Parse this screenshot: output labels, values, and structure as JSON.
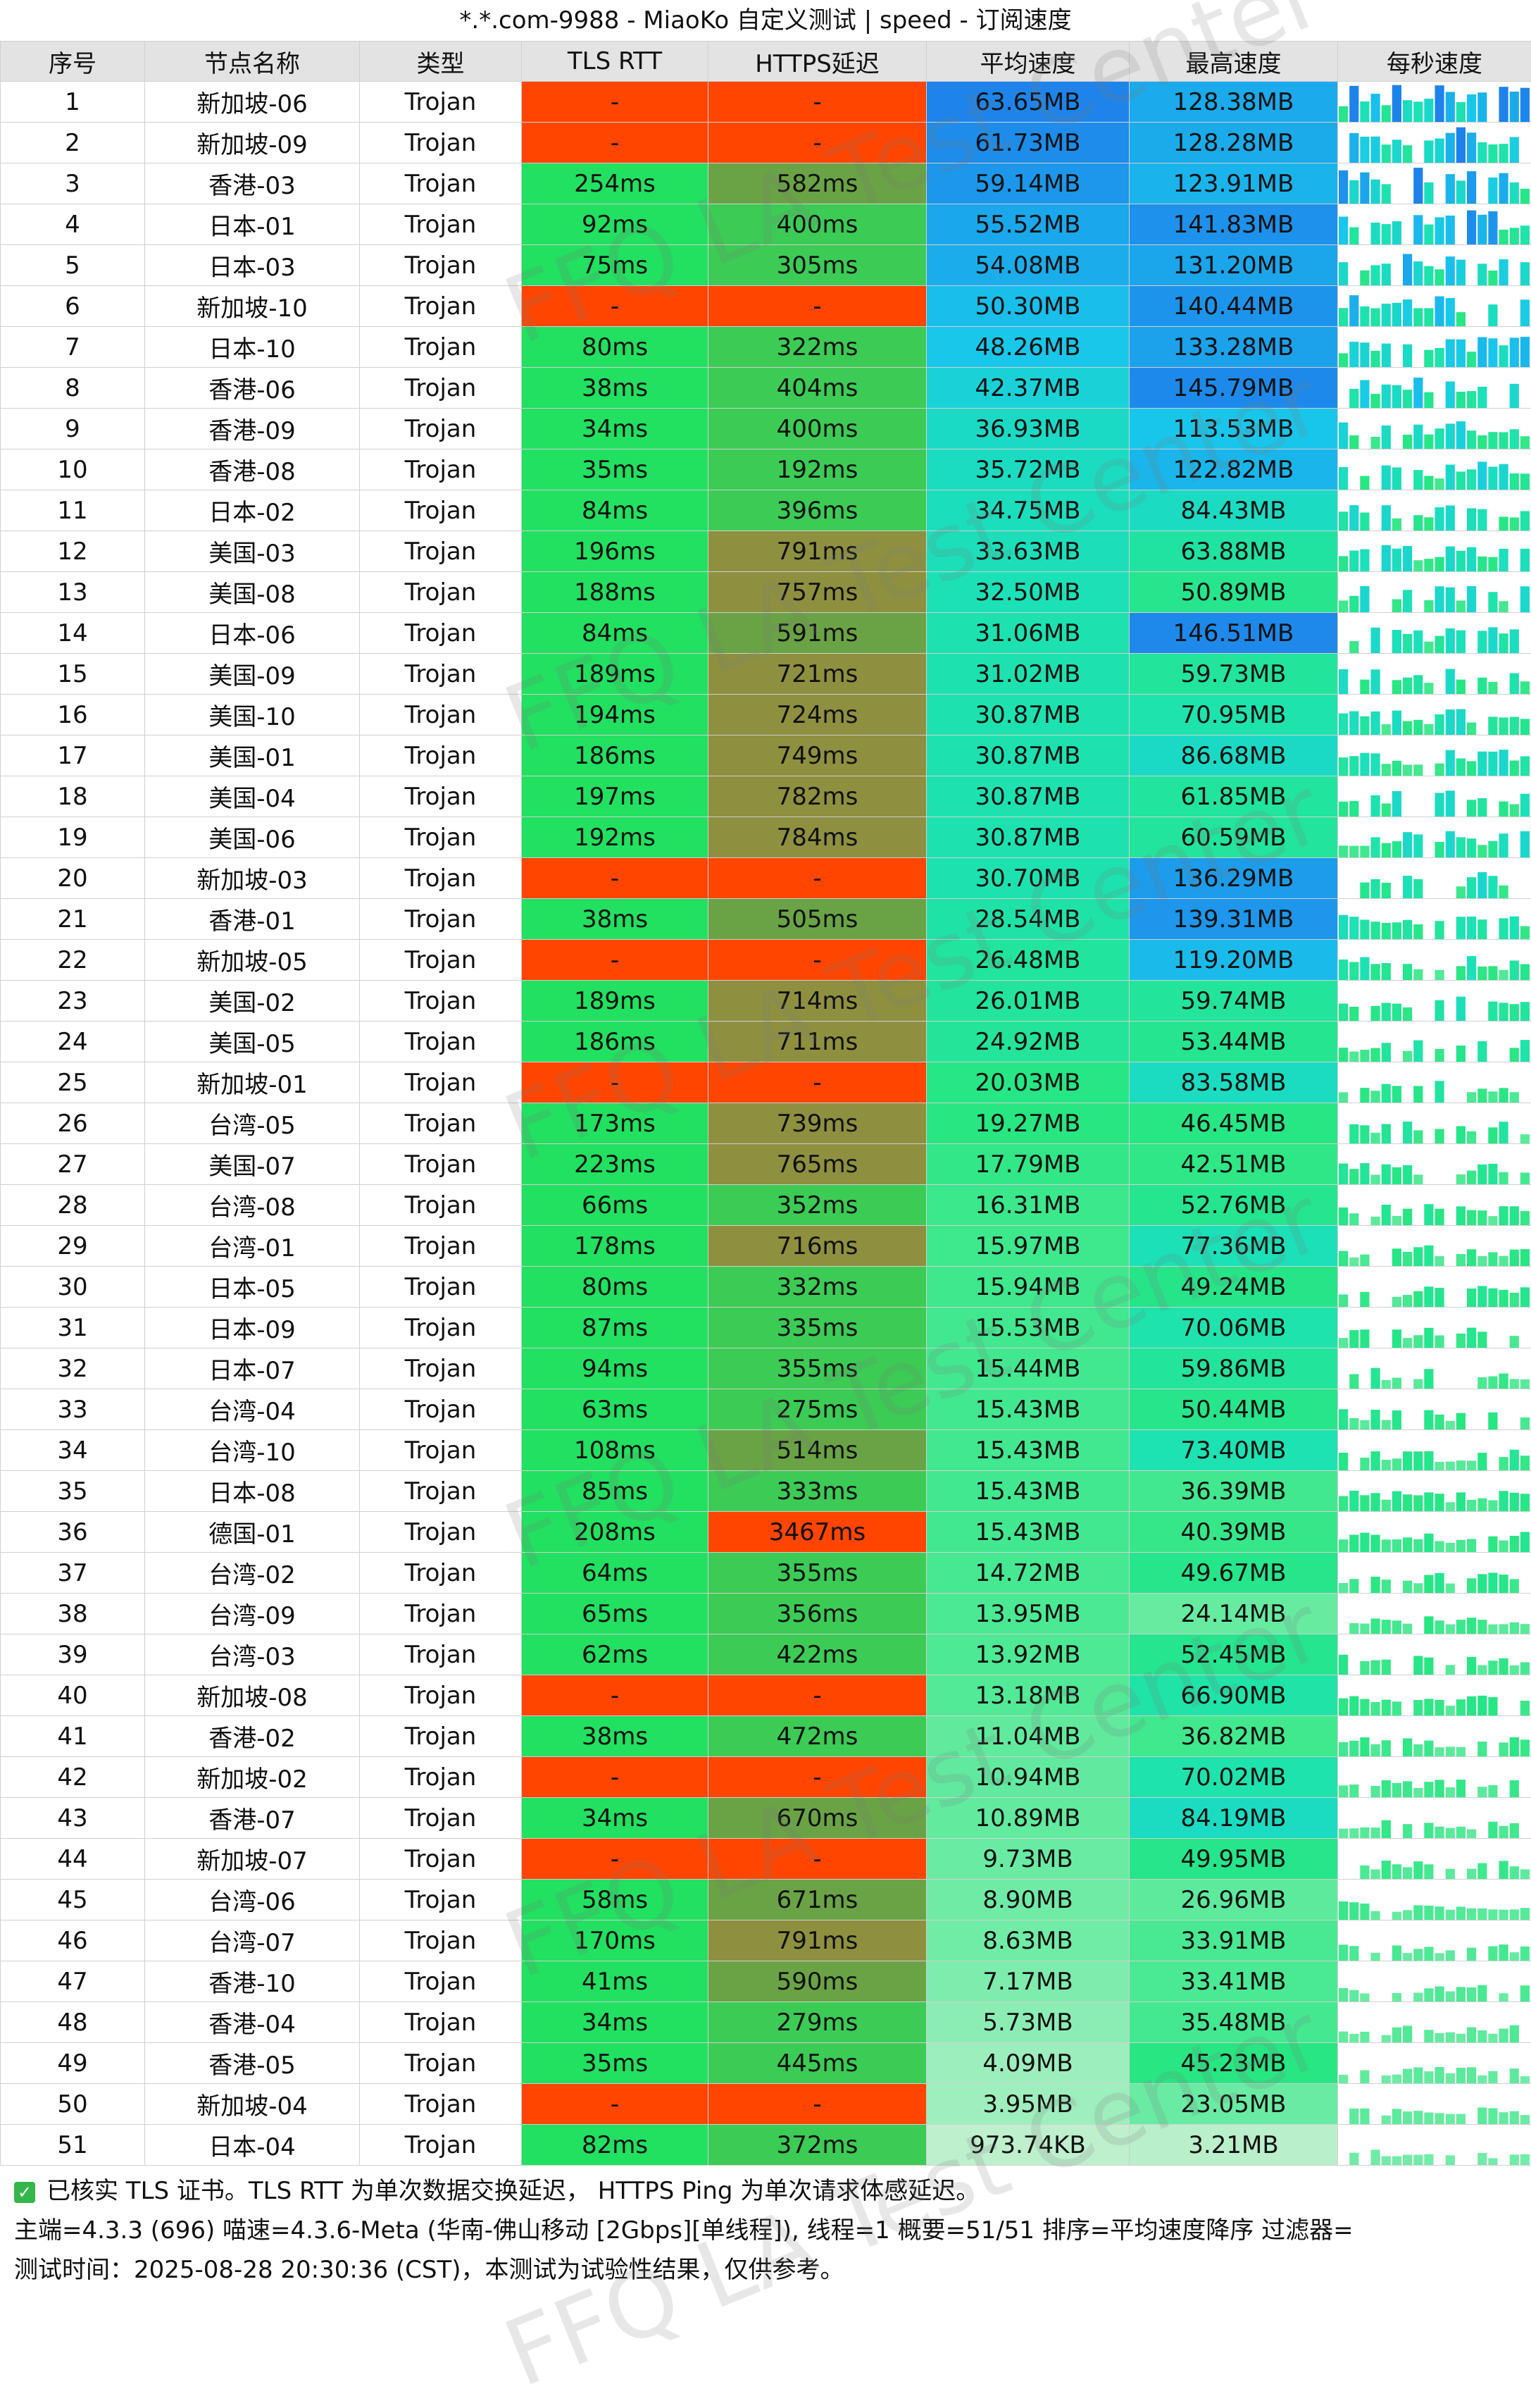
{
  "title": "*.*.com-9988 - MiaoKo 自定义测试 | speed - 订阅速度",
  "watermark": "FFQ LA Test Center",
  "columns": [
    "序号",
    "节点名称",
    "类型",
    "TLS RTT",
    "HTTPS延迟",
    "平均速度",
    "最高速度",
    "每秒速度"
  ],
  "rows": [
    {
      "no": "1",
      "name": "新加坡-06",
      "type": "Trojan",
      "tls": "-",
      "https": "-",
      "avg": "63.65MB",
      "max": "128.38MB"
    },
    {
      "no": "2",
      "name": "新加坡-09",
      "type": "Trojan",
      "tls": "-",
      "https": "-",
      "avg": "61.73MB",
      "max": "128.28MB"
    },
    {
      "no": "3",
      "name": "香港-03",
      "type": "Trojan",
      "tls": "254ms",
      "https": "582ms",
      "avg": "59.14MB",
      "max": "123.91MB"
    },
    {
      "no": "4",
      "name": "日本-01",
      "type": "Trojan",
      "tls": "92ms",
      "https": "400ms",
      "avg": "55.52MB",
      "max": "141.83MB"
    },
    {
      "no": "5",
      "name": "日本-03",
      "type": "Trojan",
      "tls": "75ms",
      "https": "305ms",
      "avg": "54.08MB",
      "max": "131.20MB"
    },
    {
      "no": "6",
      "name": "新加坡-10",
      "type": "Trojan",
      "tls": "-",
      "https": "-",
      "avg": "50.30MB",
      "max": "140.44MB"
    },
    {
      "no": "7",
      "name": "日本-10",
      "type": "Trojan",
      "tls": "80ms",
      "https": "322ms",
      "avg": "48.26MB",
      "max": "133.28MB"
    },
    {
      "no": "8",
      "name": "香港-06",
      "type": "Trojan",
      "tls": "38ms",
      "https": "404ms",
      "avg": "42.37MB",
      "max": "145.79MB"
    },
    {
      "no": "9",
      "name": "香港-09",
      "type": "Trojan",
      "tls": "34ms",
      "https": "400ms",
      "avg": "36.93MB",
      "max": "113.53MB"
    },
    {
      "no": "10",
      "name": "香港-08",
      "type": "Trojan",
      "tls": "35ms",
      "https": "192ms",
      "avg": "35.72MB",
      "max": "122.82MB"
    },
    {
      "no": "11",
      "name": "日本-02",
      "type": "Trojan",
      "tls": "84ms",
      "https": "396ms",
      "avg": "34.75MB",
      "max": "84.43MB"
    },
    {
      "no": "12",
      "name": "美国-03",
      "type": "Trojan",
      "tls": "196ms",
      "https": "791ms",
      "avg": "33.63MB",
      "max": "63.88MB"
    },
    {
      "no": "13",
      "name": "美国-08",
      "type": "Trojan",
      "tls": "188ms",
      "https": "757ms",
      "avg": "32.50MB",
      "max": "50.89MB"
    },
    {
      "no": "14",
      "name": "日本-06",
      "type": "Trojan",
      "tls": "84ms",
      "https": "591ms",
      "avg": "31.06MB",
      "max": "146.51MB"
    },
    {
      "no": "15",
      "name": "美国-09",
      "type": "Trojan",
      "tls": "189ms",
      "https": "721ms",
      "avg": "31.02MB",
      "max": "59.73MB"
    },
    {
      "no": "16",
      "name": "美国-10",
      "type": "Trojan",
      "tls": "194ms",
      "https": "724ms",
      "avg": "30.87MB",
      "max": "70.95MB"
    },
    {
      "no": "17",
      "name": "美国-01",
      "type": "Trojan",
      "tls": "186ms",
      "https": "749ms",
      "avg": "30.87MB",
      "max": "86.68MB"
    },
    {
      "no": "18",
      "name": "美国-04",
      "type": "Trojan",
      "tls": "197ms",
      "https": "782ms",
      "avg": "30.87MB",
      "max": "61.85MB"
    },
    {
      "no": "19",
      "name": "美国-06",
      "type": "Trojan",
      "tls": "192ms",
      "https": "784ms",
      "avg": "30.87MB",
      "max": "60.59MB"
    },
    {
      "no": "20",
      "name": "新加坡-03",
      "type": "Trojan",
      "tls": "-",
      "https": "-",
      "avg": "30.70MB",
      "max": "136.29MB"
    },
    {
      "no": "21",
      "name": "香港-01",
      "type": "Trojan",
      "tls": "38ms",
      "https": "505ms",
      "avg": "28.54MB",
      "max": "139.31MB"
    },
    {
      "no": "22",
      "name": "新加坡-05",
      "type": "Trojan",
      "tls": "-",
      "https": "-",
      "avg": "26.48MB",
      "max": "119.20MB"
    },
    {
      "no": "23",
      "name": "美国-02",
      "type": "Trojan",
      "tls": "189ms",
      "https": "714ms",
      "avg": "26.01MB",
      "max": "59.74MB"
    },
    {
      "no": "24",
      "name": "美国-05",
      "type": "Trojan",
      "tls": "186ms",
      "https": "711ms",
      "avg": "24.92MB",
      "max": "53.44MB"
    },
    {
      "no": "25",
      "name": "新加坡-01",
      "type": "Trojan",
      "tls": "-",
      "https": "-",
      "avg": "20.03MB",
      "max": "83.58MB"
    },
    {
      "no": "26",
      "name": "台湾-05",
      "type": "Trojan",
      "tls": "173ms",
      "https": "739ms",
      "avg": "19.27MB",
      "max": "46.45MB"
    },
    {
      "no": "27",
      "name": "美国-07",
      "type": "Trojan",
      "tls": "223ms",
      "https": "765ms",
      "avg": "17.79MB",
      "max": "42.51MB"
    },
    {
      "no": "28",
      "name": "台湾-08",
      "type": "Trojan",
      "tls": "66ms",
      "https": "352ms",
      "avg": "16.31MB",
      "max": "52.76MB"
    },
    {
      "no": "29",
      "name": "台湾-01",
      "type": "Trojan",
      "tls": "178ms",
      "https": "716ms",
      "avg": "15.97MB",
      "max": "77.36MB"
    },
    {
      "no": "30",
      "name": "日本-05",
      "type": "Trojan",
      "tls": "80ms",
      "https": "332ms",
      "avg": "15.94MB",
      "max": "49.24MB"
    },
    {
      "no": "31",
      "name": "日本-09",
      "type": "Trojan",
      "tls": "87ms",
      "https": "335ms",
      "avg": "15.53MB",
      "max": "70.06MB"
    },
    {
      "no": "32",
      "name": "日本-07",
      "type": "Trojan",
      "tls": "94ms",
      "https": "355ms",
      "avg": "15.44MB",
      "max": "59.86MB"
    },
    {
      "no": "33",
      "name": "台湾-04",
      "type": "Trojan",
      "tls": "63ms",
      "https": "275ms",
      "avg": "15.43MB",
      "max": "50.44MB"
    },
    {
      "no": "34",
      "name": "台湾-10",
      "type": "Trojan",
      "tls": "108ms",
      "https": "514ms",
      "avg": "15.43MB",
      "max": "73.40MB"
    },
    {
      "no": "35",
      "name": "日本-08",
      "type": "Trojan",
      "tls": "85ms",
      "https": "333ms",
      "avg": "15.43MB",
      "max": "36.39MB"
    },
    {
      "no": "36",
      "name": "德国-01",
      "type": "Trojan",
      "tls": "208ms",
      "https": "3467ms",
      "avg": "15.43MB",
      "max": "40.39MB"
    },
    {
      "no": "37",
      "name": "台湾-02",
      "type": "Trojan",
      "tls": "64ms",
      "https": "355ms",
      "avg": "14.72MB",
      "max": "49.67MB"
    },
    {
      "no": "38",
      "name": "台湾-09",
      "type": "Trojan",
      "tls": "65ms",
      "https": "356ms",
      "avg": "13.95MB",
      "max": "24.14MB"
    },
    {
      "no": "39",
      "name": "台湾-03",
      "type": "Trojan",
      "tls": "62ms",
      "https": "422ms",
      "avg": "13.92MB",
      "max": "52.45MB"
    },
    {
      "no": "40",
      "name": "新加坡-08",
      "type": "Trojan",
      "tls": "-",
      "https": "-",
      "avg": "13.18MB",
      "max": "66.90MB"
    },
    {
      "no": "41",
      "name": "香港-02",
      "type": "Trojan",
      "tls": "38ms",
      "https": "472ms",
      "avg": "11.04MB",
      "max": "36.82MB"
    },
    {
      "no": "42",
      "name": "新加坡-02",
      "type": "Trojan",
      "tls": "-",
      "https": "-",
      "avg": "10.94MB",
      "max": "70.02MB"
    },
    {
      "no": "43",
      "name": "香港-07",
      "type": "Trojan",
      "tls": "34ms",
      "https": "670ms",
      "avg": "10.89MB",
      "max": "84.19MB"
    },
    {
      "no": "44",
      "name": "新加坡-07",
      "type": "Trojan",
      "tls": "-",
      "https": "-",
      "avg": "9.73MB",
      "max": "49.95MB"
    },
    {
      "no": "45",
      "name": "台湾-06",
      "type": "Trojan",
      "tls": "58ms",
      "https": "671ms",
      "avg": "8.90MB",
      "max": "26.96MB"
    },
    {
      "no": "46",
      "name": "台湾-07",
      "type": "Trojan",
      "tls": "170ms",
      "https": "791ms",
      "avg": "8.63MB",
      "max": "33.91MB"
    },
    {
      "no": "47",
      "name": "香港-10",
      "type": "Trojan",
      "tls": "41ms",
      "https": "590ms",
      "avg": "7.17MB",
      "max": "33.41MB"
    },
    {
      "no": "48",
      "name": "香港-04",
      "type": "Trojan",
      "tls": "34ms",
      "https": "279ms",
      "avg": "5.73MB",
      "max": "35.48MB"
    },
    {
      "no": "49",
      "name": "香港-05",
      "type": "Trojan",
      "tls": "35ms",
      "https": "445ms",
      "avg": "4.09MB",
      "max": "45.23MB"
    },
    {
      "no": "50",
      "name": "新加坡-04",
      "type": "Trojan",
      "tls": "-",
      "https": "-",
      "avg": "3.95MB",
      "max": "23.05MB"
    },
    {
      "no": "51",
      "name": "日本-04",
      "type": "Trojan",
      "tls": "82ms",
      "https": "372ms",
      "avg": "973.74KB",
      "max": "3.21MB"
    }
  ],
  "footer": {
    "line1": "已核实 TLS 证书。TLS RTT 为单次数据交换延迟， HTTPS Ping 为单次请求体感延迟。",
    "line2": "主端=4.3.3 (696) 喵速=4.3.6-Meta (华南-佛山移动 [2Gbps][单线程]), 线程=1 概要=51/51 排序=平均速度降序 过滤器=",
    "line3": "测试时间：2025-08-28 20:30:36 (CST)，本测试为试验性结果，仅供参考。"
  },
  "colors": {
    "fail": "#ff4500",
    "tls_ok": "#22e060",
    "https_fast": "#3ccb55",
    "https_mid": "#6aa345",
    "https_slow": "#8e9040",
    "header_bg": "#e3e3e3"
  }
}
